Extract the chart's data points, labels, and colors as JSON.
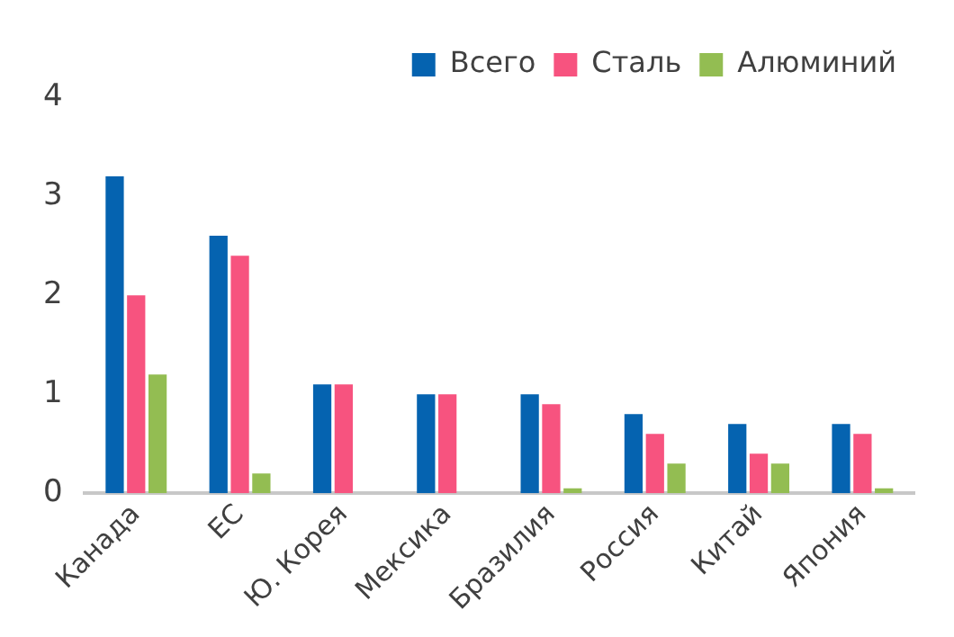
{
  "chart_data": {
    "type": "bar",
    "categories": [
      "Канада",
      "ЕС",
      "Ю. Корея",
      "Мексика",
      "Бразилия",
      "Россия",
      "Китай",
      "Япония"
    ],
    "series": [
      {
        "name": "Всего",
        "color": "#0563b0",
        "values": [
          3.2,
          2.6,
          1.1,
          1.0,
          1.0,
          0.8,
          0.7,
          0.7
        ]
      },
      {
        "name": "Сталь",
        "color": "#f7537f",
        "values": [
          2.0,
          2.4,
          1.1,
          1.0,
          0.9,
          0.6,
          0.4,
          0.6
        ]
      },
      {
        "name": "Алюминий",
        "color": "#93bd52",
        "values": [
          1.2,
          0.2,
          0,
          0,
          0.05,
          0.3,
          0.3,
          0.05
        ]
      }
    ],
    "ylim": [
      0,
      4
    ],
    "yticks": [
      0,
      1,
      2,
      3,
      4
    ],
    "grid": false,
    "legend": "top right"
  }
}
